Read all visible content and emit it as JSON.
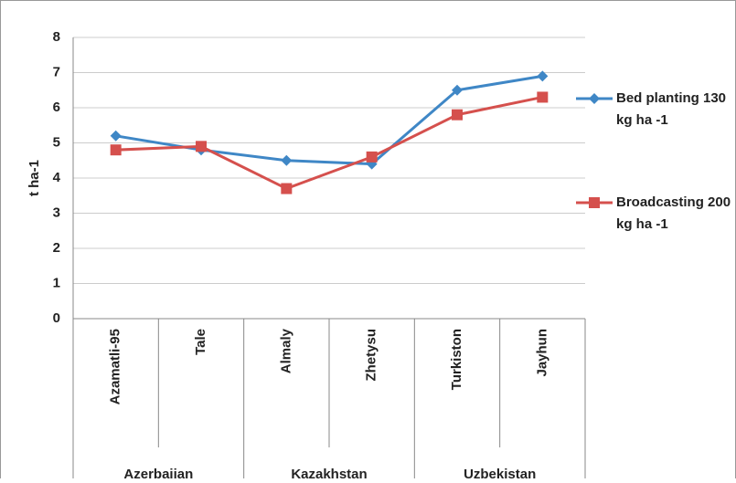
{
  "chart_data": {
    "type": "line",
    "y_label": "t ha-1",
    "categories": [
      "Azamatli-95",
      "Tale",
      "Almaly",
      "Zhetysu",
      "Turkiston",
      "Jayhun"
    ],
    "groups": [
      "Azerbaijan",
      "Kazakhstan",
      "Uzbekistan"
    ],
    "series": [
      {
        "name": "Bed planting 130 kg ha -1",
        "color": "#3f87c6",
        "marker": "diamond",
        "values": [
          5.2,
          4.8,
          4.5,
          4.4,
          6.5,
          6.9
        ]
      },
      {
        "name": "Broadcasting 200 kg ha -1",
        "color": "#d5504d",
        "marker": "square",
        "values": [
          4.8,
          4.9,
          3.7,
          4.6,
          5.8,
          6.3
        ]
      }
    ],
    "ylim": [
      0,
      8
    ],
    "yticks": [
      0,
      1,
      2,
      3,
      4,
      5,
      6,
      7,
      8
    ],
    "grid": true,
    "legend": "right"
  }
}
